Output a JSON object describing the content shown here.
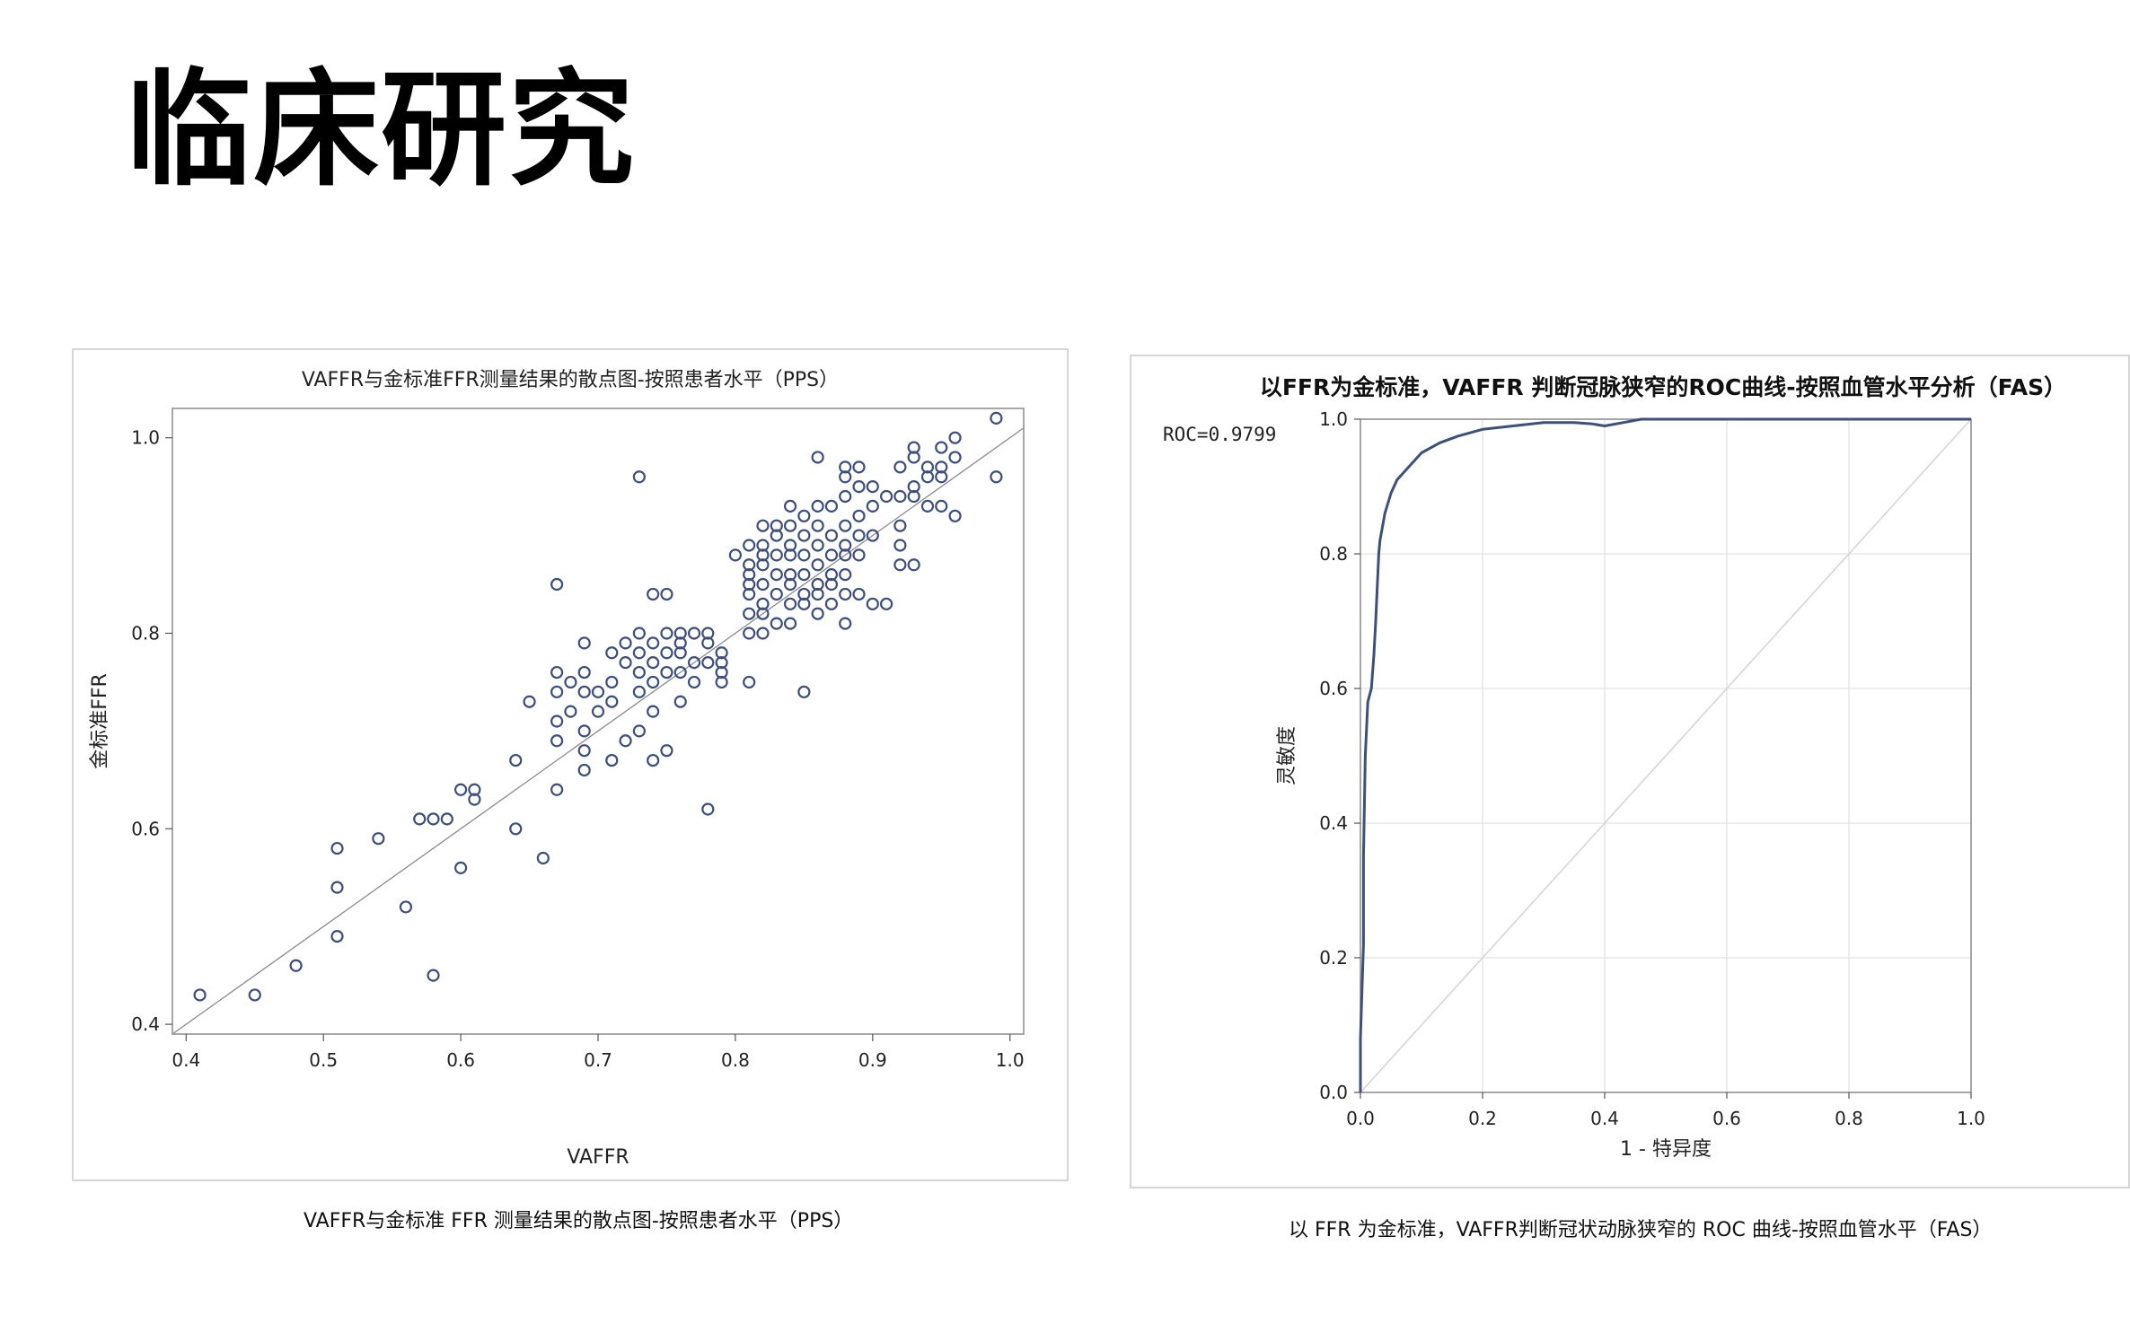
{
  "page": {
    "title": "临床研究"
  },
  "captions": {
    "left": "VAFFR与金标准 FFR 测量结果的散点图-按照患者水平（PPS）",
    "right": "以 FFR 为金标准，VAFFR判断冠状动脉狭窄的 ROC 曲线-按照血管水平（FAS）"
  },
  "chart_data": [
    {
      "type": "scatter",
      "title": "VAFFR与金标准FFR测量结果的散点图-按照患者水平（PPS）",
      "xlabel": "VAFFR",
      "ylabel": "金标准FFR",
      "xlim": [
        0.39,
        1.01
      ],
      "ylim": [
        0.39,
        1.03
      ],
      "xticks": [
        "0.4",
        "0.5",
        "0.6",
        "0.7",
        "0.8",
        "0.9",
        "1.0"
      ],
      "yticks": [
        "0.4",
        "0.6",
        "0.8",
        "1.0"
      ],
      "reference_line": "y=x",
      "marker": "open-circle",
      "color": "#3d4f7c",
      "grid": false,
      "points": [
        [
          0.41,
          0.43
        ],
        [
          0.45,
          0.43
        ],
        [
          0.48,
          0.46
        ],
        [
          0.51,
          0.49
        ],
        [
          0.51,
          0.54
        ],
        [
          0.51,
          0.58
        ],
        [
          0.54,
          0.59
        ],
        [
          0.56,
          0.52
        ],
        [
          0.57,
          0.61
        ],
        [
          0.58,
          0.61
        ],
        [
          0.59,
          0.61
        ],
        [
          0.58,
          0.45
        ],
        [
          0.6,
          0.56
        ],
        [
          0.6,
          0.64
        ],
        [
          0.61,
          0.64
        ],
        [
          0.61,
          0.63
        ],
        [
          0.64,
          0.6
        ],
        [
          0.64,
          0.67
        ],
        [
          0.65,
          0.73
        ],
        [
          0.66,
          0.57
        ],
        [
          0.67,
          0.64
        ],
        [
          0.67,
          0.69
        ],
        [
          0.67,
          0.71
        ],
        [
          0.67,
          0.74
        ],
        [
          0.67,
          0.76
        ],
        [
          0.68,
          0.72
        ],
        [
          0.68,
          0.75
        ],
        [
          0.69,
          0.66
        ],
        [
          0.69,
          0.68
        ],
        [
          0.69,
          0.7
        ],
        [
          0.69,
          0.74
        ],
        [
          0.69,
          0.76
        ],
        [
          0.69,
          0.79
        ],
        [
          0.7,
          0.72
        ],
        [
          0.7,
          0.74
        ],
        [
          0.71,
          0.67
        ],
        [
          0.71,
          0.73
        ],
        [
          0.71,
          0.75
        ],
        [
          0.71,
          0.78
        ],
        [
          0.72,
          0.69
        ],
        [
          0.72,
          0.77
        ],
        [
          0.72,
          0.79
        ],
        [
          0.73,
          0.7
        ],
        [
          0.73,
          0.74
        ],
        [
          0.73,
          0.76
        ],
        [
          0.73,
          0.78
        ],
        [
          0.73,
          0.8
        ],
        [
          0.74,
          0.67
        ],
        [
          0.74,
          0.72
        ],
        [
          0.74,
          0.75
        ],
        [
          0.74,
          0.77
        ],
        [
          0.74,
          0.79
        ],
        [
          0.74,
          0.84
        ],
        [
          0.75,
          0.68
        ],
        [
          0.75,
          0.76
        ],
        [
          0.75,
          0.78
        ],
        [
          0.75,
          0.8
        ],
        [
          0.75,
          0.84
        ],
        [
          0.76,
          0.73
        ],
        [
          0.76,
          0.76
        ],
        [
          0.76,
          0.78
        ],
        [
          0.76,
          0.79
        ],
        [
          0.76,
          0.8
        ],
        [
          0.77,
          0.75
        ],
        [
          0.77,
          0.77
        ],
        [
          0.77,
          0.8
        ],
        [
          0.78,
          0.62
        ],
        [
          0.78,
          0.77
        ],
        [
          0.78,
          0.79
        ],
        [
          0.78,
          0.8
        ],
        [
          0.79,
          0.75
        ],
        [
          0.79,
          0.76
        ],
        [
          0.79,
          0.77
        ],
        [
          0.79,
          0.78
        ],
        [
          0.8,
          0.88
        ],
        [
          0.81,
          0.75
        ],
        [
          0.81,
          0.8
        ],
        [
          0.81,
          0.82
        ],
        [
          0.81,
          0.84
        ],
        [
          0.81,
          0.85
        ],
        [
          0.81,
          0.86
        ],
        [
          0.81,
          0.87
        ],
        [
          0.81,
          0.89
        ],
        [
          0.82,
          0.8
        ],
        [
          0.82,
          0.82
        ],
        [
          0.82,
          0.83
        ],
        [
          0.82,
          0.85
        ],
        [
          0.82,
          0.87
        ],
        [
          0.82,
          0.88
        ],
        [
          0.82,
          0.89
        ],
        [
          0.82,
          0.91
        ],
        [
          0.83,
          0.81
        ],
        [
          0.83,
          0.84
        ],
        [
          0.83,
          0.86
        ],
        [
          0.83,
          0.88
        ],
        [
          0.83,
          0.9
        ],
        [
          0.83,
          0.91
        ],
        [
          0.84,
          0.81
        ],
        [
          0.84,
          0.83
        ],
        [
          0.84,
          0.85
        ],
        [
          0.84,
          0.86
        ],
        [
          0.84,
          0.88
        ],
        [
          0.84,
          0.89
        ],
        [
          0.84,
          0.91
        ],
        [
          0.84,
          0.93
        ],
        [
          0.85,
          0.74
        ],
        [
          0.85,
          0.83
        ],
        [
          0.85,
          0.84
        ],
        [
          0.85,
          0.86
        ],
        [
          0.85,
          0.88
        ],
        [
          0.85,
          0.9
        ],
        [
          0.85,
          0.92
        ],
        [
          0.86,
          0.82
        ],
        [
          0.86,
          0.84
        ],
        [
          0.86,
          0.85
        ],
        [
          0.86,
          0.87
        ],
        [
          0.86,
          0.89
        ],
        [
          0.86,
          0.91
        ],
        [
          0.86,
          0.93
        ],
        [
          0.86,
          0.98
        ],
        [
          0.87,
          0.83
        ],
        [
          0.87,
          0.85
        ],
        [
          0.87,
          0.86
        ],
        [
          0.87,
          0.88
        ],
        [
          0.87,
          0.9
        ],
        [
          0.87,
          0.93
        ],
        [
          0.88,
          0.81
        ],
        [
          0.88,
          0.84
        ],
        [
          0.88,
          0.86
        ],
        [
          0.88,
          0.88
        ],
        [
          0.88,
          0.89
        ],
        [
          0.88,
          0.91
        ],
        [
          0.88,
          0.94
        ],
        [
          0.88,
          0.96
        ],
        [
          0.88,
          0.97
        ],
        [
          0.89,
          0.84
        ],
        [
          0.89,
          0.88
        ],
        [
          0.89,
          0.9
        ],
        [
          0.89,
          0.92
        ],
        [
          0.89,
          0.95
        ],
        [
          0.89,
          0.97
        ],
        [
          0.9,
          0.83
        ],
        [
          0.9,
          0.9
        ],
        [
          0.9,
          0.93
        ],
        [
          0.9,
          0.95
        ],
        [
          0.91,
          0.83
        ],
        [
          0.91,
          0.94
        ],
        [
          0.92,
          0.87
        ],
        [
          0.92,
          0.89
        ],
        [
          0.92,
          0.91
        ],
        [
          0.92,
          0.94
        ],
        [
          0.92,
          0.97
        ],
        [
          0.93,
          0.87
        ],
        [
          0.93,
          0.94
        ],
        [
          0.93,
          0.95
        ],
        [
          0.93,
          0.98
        ],
        [
          0.93,
          0.99
        ],
        [
          0.94,
          0.93
        ],
        [
          0.94,
          0.96
        ],
        [
          0.94,
          0.97
        ],
        [
          0.95,
          0.93
        ],
        [
          0.95,
          0.96
        ],
        [
          0.95,
          0.97
        ],
        [
          0.95,
          0.99
        ],
        [
          0.96,
          0.92
        ],
        [
          0.96,
          0.98
        ],
        [
          0.96,
          1.0
        ],
        [
          0.73,
          0.96
        ],
        [
          0.67,
          0.85
        ],
        [
          0.99,
          1.02
        ],
        [
          0.99,
          0.96
        ]
      ]
    },
    {
      "type": "line",
      "title": "以FFR为金标准，VAFFR 判断冠脉狭窄的ROC曲线-按照血管水平分析（FAS）",
      "xlabel": "1 - 特异度",
      "ylabel": "灵敏度",
      "annotation": "ROC=0.9799",
      "xlim": [
        0.0,
        1.0
      ],
      "ylim": [
        0.0,
        1.0
      ],
      "xticks": [
        "0.0",
        "0.2",
        "0.4",
        "0.6",
        "0.8",
        "1.0"
      ],
      "yticks": [
        "0.0",
        "0.2",
        "0.4",
        "0.6",
        "0.8",
        "1.0"
      ],
      "grid": true,
      "reference_line": "y=x",
      "color": "#3d4f7c",
      "x": [
        0.0,
        0.0,
        0.005,
        0.005,
        0.008,
        0.012,
        0.018,
        0.022,
        0.025,
        0.03,
        0.032,
        0.04,
        0.05,
        0.06,
        0.08,
        0.1,
        0.13,
        0.16,
        0.2,
        0.25,
        0.3,
        0.35,
        0.38,
        0.4,
        0.43,
        0.46,
        0.5,
        0.6,
        0.7,
        0.8,
        0.9,
        1.0
      ],
      "y": [
        0.0,
        0.08,
        0.22,
        0.35,
        0.5,
        0.58,
        0.6,
        0.65,
        0.7,
        0.8,
        0.82,
        0.86,
        0.89,
        0.91,
        0.93,
        0.95,
        0.965,
        0.975,
        0.985,
        0.99,
        0.995,
        0.995,
        0.993,
        0.99,
        0.995,
        1.0,
        1.0,
        1.0,
        1.0,
        1.0,
        1.0,
        1.0
      ]
    }
  ]
}
